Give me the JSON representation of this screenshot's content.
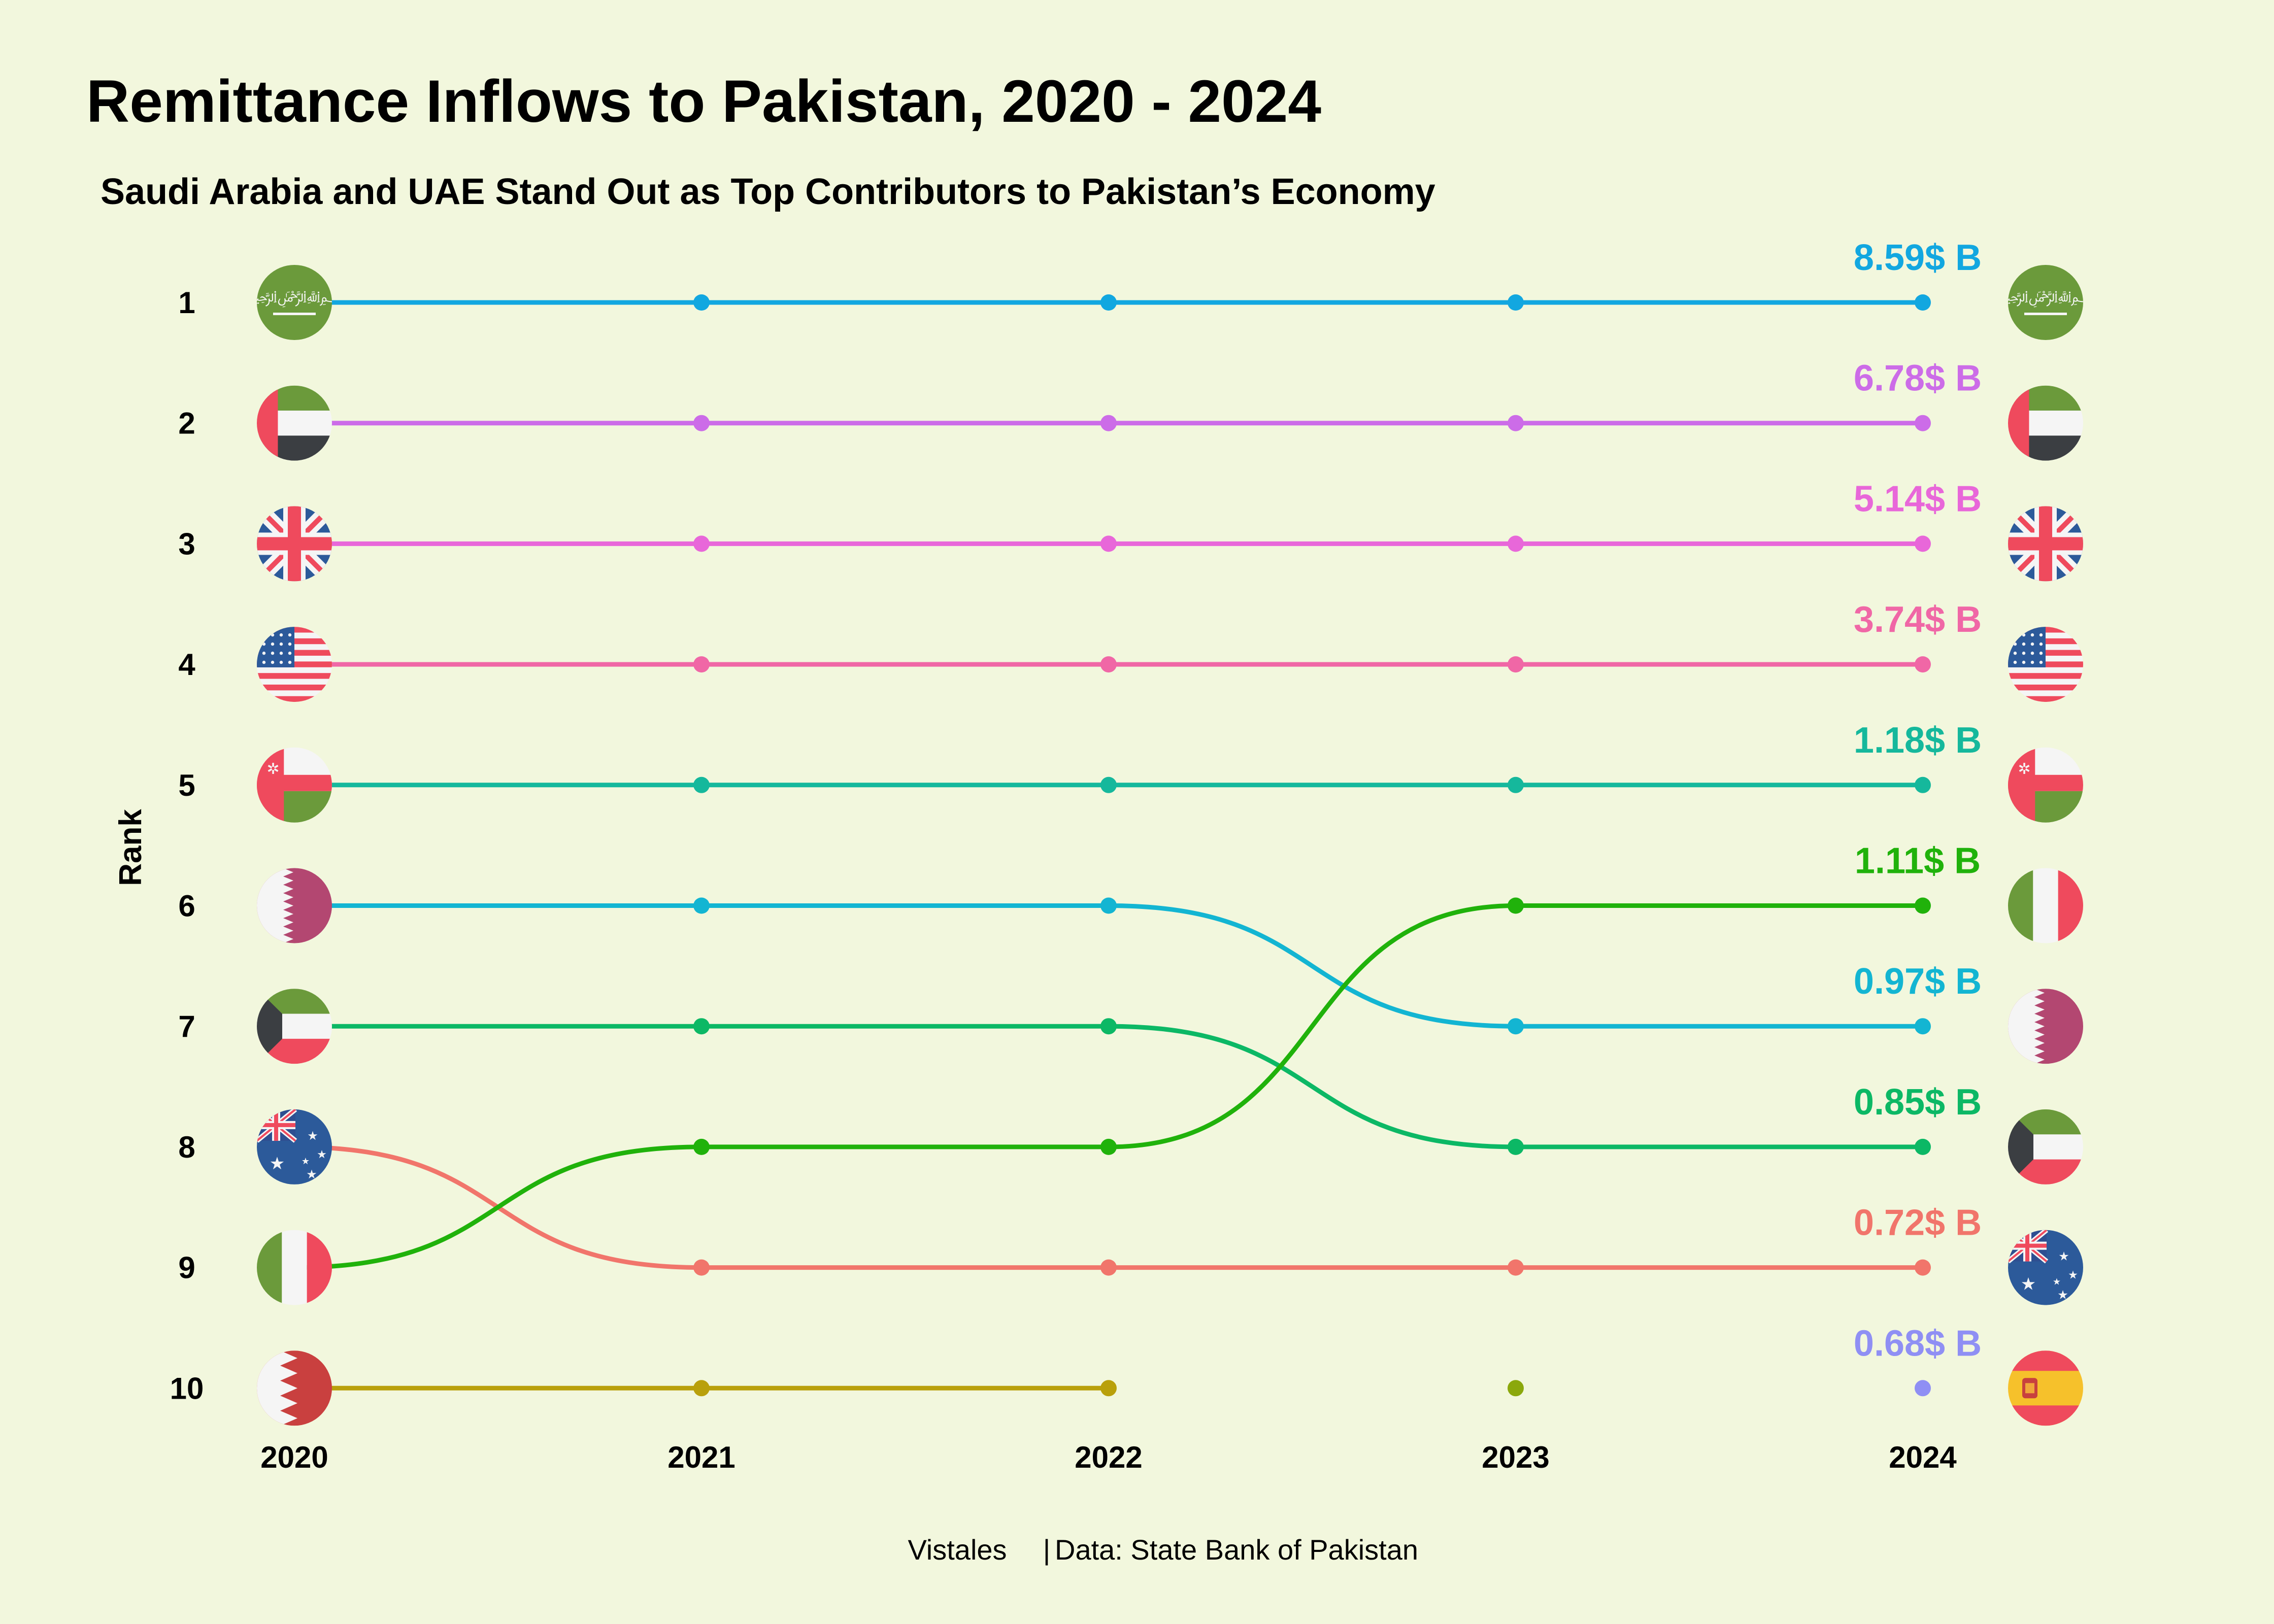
{
  "chart_data": {
    "type": "line",
    "title": "Remittance Inflows to Pakistan, 2020 - 2024",
    "subtitle": "Saudi Arabia and UAE Stand Out as Top Contributors to Pakistan’s Economy",
    "ylabel": "Rank",
    "xlabel": "",
    "x": [
      "2020",
      "2021",
      "2022",
      "2023",
      "2024"
    ],
    "ranks": [
      "1",
      "2",
      "3",
      "4",
      "5",
      "6",
      "7",
      "8",
      "9",
      "10"
    ],
    "series": [
      {
        "name": "Saudi Arabia",
        "color": "#12a7e0",
        "flag": "saudi-arabia",
        "ranks": [
          1,
          1,
          1,
          1,
          1
        ],
        "label": "8.59$ B"
      },
      {
        "name": "UAE",
        "color": "#cc6ce8",
        "flag": "uae",
        "ranks": [
          2,
          2,
          2,
          2,
          2
        ],
        "label": "6.78$ B"
      },
      {
        "name": "United Kingdom",
        "color": "#e867d9",
        "flag": "uk",
        "ranks": [
          3,
          3,
          3,
          3,
          3
        ],
        "label": "5.14$ B"
      },
      {
        "name": "USA",
        "color": "#f067a6",
        "flag": "usa",
        "ranks": [
          4,
          4,
          4,
          4,
          4
        ],
        "label": "3.74$ B"
      },
      {
        "name": "Oman",
        "color": "#15b89c",
        "flag": "oman",
        "ranks": [
          5,
          5,
          5,
          5,
          5
        ],
        "label": "1.18$ B"
      },
      {
        "name": "Qatar",
        "color": "#13b5d2",
        "flag": "qatar",
        "ranks": [
          6,
          6,
          6,
          7,
          7
        ],
        "label": "0.97$ B"
      },
      {
        "name": "Kuwait",
        "color": "#0cb865",
        "flag": "kuwait",
        "ranks": [
          7,
          7,
          7,
          8,
          8
        ],
        "label": "0.85$ B"
      },
      {
        "name": "Australia",
        "color": "#f1756b",
        "flag": "australia",
        "ranks": [
          8,
          9,
          9,
          9,
          9
        ],
        "label": "0.72$ B"
      },
      {
        "name": "Italy",
        "color": "#20b20b",
        "flag": "italy",
        "ranks": [
          9,
          8,
          8,
          6,
          6
        ],
        "label": "1.11$ B"
      },
      {
        "name": "Bahrain",
        "color": "#b9a00b",
        "flag": "bahrain",
        "ranks": [
          10,
          10,
          10,
          null,
          null
        ],
        "label": null
      },
      {
        "name": "Rank 10 (2023)",
        "color": "#8ba80c",
        "flag": null,
        "ranks": [
          null,
          null,
          null,
          10,
          null
        ],
        "label": null
      },
      {
        "name": "Spain",
        "color": "#8f8ff4",
        "flag": "spain",
        "ranks": [
          null,
          null,
          null,
          null,
          10
        ],
        "label": "0.68$ B"
      }
    ]
  },
  "footer": {
    "brand": "Vistales",
    "separator": "|",
    "source": "Data: State Bank of Pakistan"
  }
}
